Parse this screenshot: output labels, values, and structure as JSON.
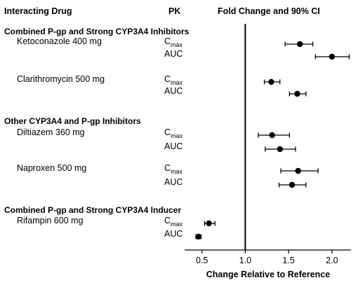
{
  "headers": {
    "drug": "Interacting Drug",
    "pk": "PK",
    "ci": "Fold Change and 90% CI"
  },
  "chart_data": {
    "type": "forest",
    "xlabel": "Change Relative to Reference",
    "xlim": [
      0.3,
      2.22
    ],
    "xticks": [
      0.5,
      1.0,
      1.5,
      2.0
    ],
    "xtick_labels": [
      "0.5",
      "1.0",
      "1.5",
      "2.0"
    ],
    "reference_line": 1.0,
    "groups": [
      {
        "label": "Combined P-gp and Strong CYP3A4 Inhibitors",
        "drugs": [
          {
            "name": "Ketoconazole 400 mg",
            "rows": [
              {
                "pk_base": "C",
                "pk_sub": "max",
                "value": 1.63,
                "lower": 1.46,
                "upper": 1.78
              },
              {
                "pk_base": "AUC",
                "pk_sub": "",
                "value": 2.0,
                "lower": 1.81,
                "upper": 2.2
              }
            ]
          },
          {
            "name": "Clarithromycin 500 mg",
            "rows": [
              {
                "pk_base": "C",
                "pk_sub": "max",
                "value": 1.3,
                "lower": 1.22,
                "upper": 1.4
              },
              {
                "pk_base": "AUC",
                "pk_sub": "",
                "value": 1.6,
                "lower": 1.51,
                "upper": 1.7
              }
            ]
          }
        ]
      },
      {
        "label": "Other CYP3A4 and P-gp Inhibitors",
        "drugs": [
          {
            "name": "Diltiazem 360 mg",
            "rows": [
              {
                "pk_base": "C",
                "pk_sub": "max",
                "value": 1.31,
                "lower": 1.15,
                "upper": 1.51
              },
              {
                "pk_base": "AUC",
                "pk_sub": "",
                "value": 1.4,
                "lower": 1.23,
                "upper": 1.58
              }
            ]
          },
          {
            "name": "Naproxen 500 mg",
            "rows": [
              {
                "pk_base": "C",
                "pk_sub": "max",
                "value": 1.61,
                "lower": 1.41,
                "upper": 1.84
              },
              {
                "pk_base": "AUC",
                "pk_sub": "",
                "value": 1.54,
                "lower": 1.39,
                "upper": 1.7
              }
            ]
          }
        ]
      },
      {
        "label": "Combined P-gp and Strong CYP3A4 Inducer",
        "drugs": [
          {
            "name": "Rifampin 600 mg",
            "rows": [
              {
                "pk_base": "C",
                "pk_sub": "max",
                "value": 0.58,
                "lower": 0.53,
                "upper": 0.65
              },
              {
                "pk_base": "AUC",
                "pk_sub": "",
                "value": 0.46,
                "lower": 0.43,
                "upper": 0.49
              }
            ]
          }
        ]
      }
    ]
  }
}
